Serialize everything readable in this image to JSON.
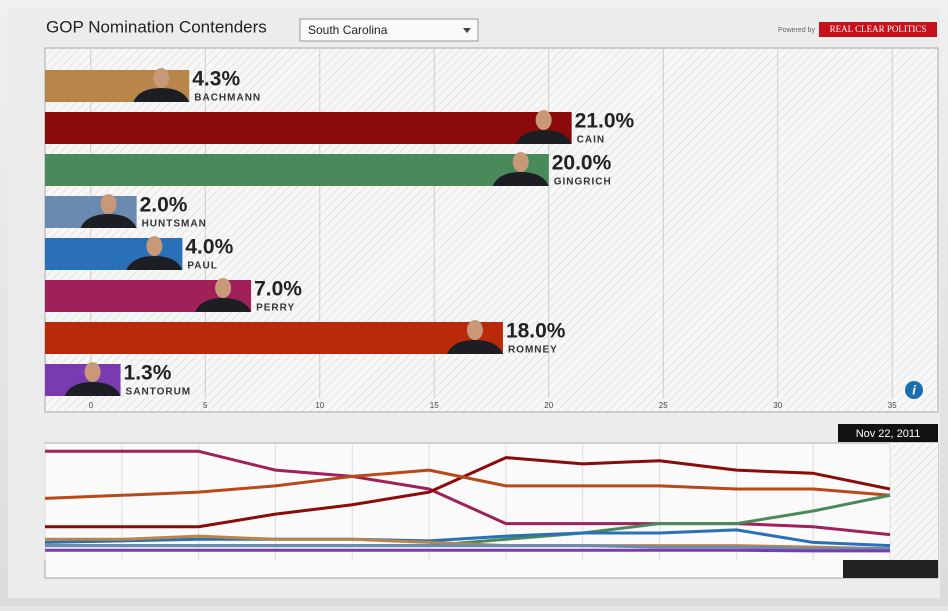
{
  "header": {
    "title": "GOP Nomination Contenders",
    "dropdown": "South Carolina",
    "powered_by": "Powered by",
    "brand": "REAL CLEAR POLITICS",
    "date": "Nov 22, 2011"
  },
  "chart_data": [
    {
      "type": "bar",
      "orientation": "horizontal",
      "categories": [
        "BACHMANN",
        "CAIN",
        "GINGRICH",
        "HUNTSMAN",
        "PAUL",
        "PERRY",
        "ROMNEY",
        "SANTORUM"
      ],
      "values": [
        4.3,
        21.0,
        20.0,
        2.0,
        4.0,
        7.0,
        18.0,
        1.3
      ],
      "value_labels": [
        "4.3%",
        "21.0%",
        "20.0%",
        "2.0%",
        "4.0%",
        "7.0%",
        "18.0%",
        "1.3%"
      ],
      "colors": [
        "#b8864a",
        "#8b0a0a",
        "#4a8a5a",
        "#6a8ab0",
        "#2a70b8",
        "#a0205a",
        "#b82a0a",
        "#7a3ab0"
      ],
      "xlim": [
        -2,
        37
      ],
      "xticks": [
        0,
        5,
        10,
        15,
        20,
        25,
        30,
        35
      ],
      "grid": true
    },
    {
      "type": "line",
      "categories": [
        null,
        null,
        null,
        null,
        null,
        null,
        null,
        null,
        null,
        null,
        null,
        null
      ],
      "ylim": [
        0,
        35
      ],
      "series": [
        {
          "name": "PERRY",
          "color": "#a0205a",
          "values": [
            33,
            33,
            33,
            27,
            25,
            21,
            10,
            10,
            10,
            10,
            9,
            6.5
          ]
        },
        {
          "name": "CAIN",
          "color": "#8b0a0a",
          "values": [
            9,
            9,
            9,
            13,
            16,
            20,
            31,
            29,
            30,
            27,
            26,
            21
          ]
        },
        {
          "name": "ROMNEY",
          "color": "#b84a1a",
          "values": [
            18,
            19,
            20,
            22,
            25,
            27,
            22,
            22,
            22,
            21,
            21,
            19
          ]
        },
        {
          "name": "GINGRICH",
          "color": "#4a8a5a",
          "values": [
            3,
            3,
            3,
            3,
            3,
            3,
            5,
            7,
            10,
            10,
            14,
            19
          ]
        },
        {
          "name": "PAUL",
          "color": "#2a70b8",
          "values": [
            4,
            4.5,
            5,
            5,
            5,
            4.5,
            6,
            7,
            7,
            8,
            4,
            3
          ]
        },
        {
          "name": "BACHMANN",
          "color": "#b8864a",
          "values": [
            5,
            5,
            6,
            5,
            5,
            4,
            3,
            3,
            3,
            3,
            2.5,
            2
          ]
        },
        {
          "name": "HUNTSMAN",
          "color": "#6a8ab0",
          "values": [
            3,
            3,
            3,
            3,
            3,
            3,
            3,
            3,
            2.5,
            2.5,
            2,
            2
          ]
        },
        {
          "name": "SANTORUM",
          "color": "#7a3ab0",
          "values": [
            1.5,
            1.5,
            1.5,
            1.5,
            1.5,
            1.5,
            1.5,
            1.5,
            1.5,
            1.5,
            1.3,
            1.3
          ]
        }
      ]
    }
  ]
}
